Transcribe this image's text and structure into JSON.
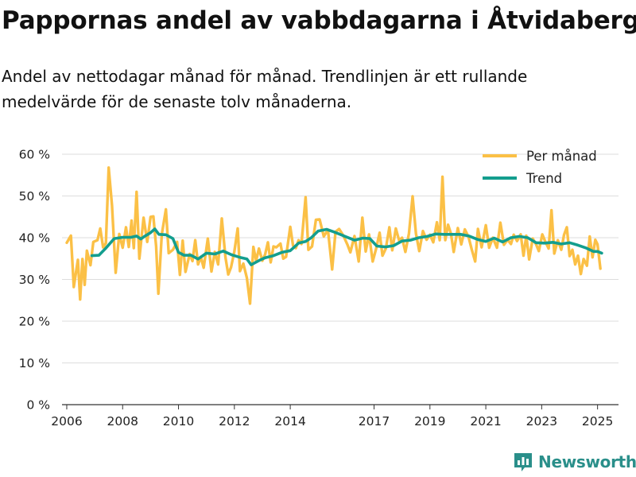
{
  "title": "Pappornas andel av vabbdagarna i Åtvidaberg",
  "subtitle": "Andel av nettodagar månad för månad. Trendlinjen är ett rullande medelvärde för de senaste tolv månaderna.",
  "brand": "Newsworthy",
  "colors": {
    "monthly": "#fbc046",
    "trend": "#139e8e",
    "brand": "#2a8f8a",
    "grid": "#dddddd"
  },
  "chart_data": {
    "type": "line",
    "title": "Pappornas andel av vabbdagarna i Åtvidaberg",
    "xlabel": "",
    "ylabel": "",
    "ylim": [
      0,
      60
    ],
    "xlim": [
      2005.83,
      2025.75
    ],
    "y_ticks": [
      0,
      10,
      20,
      30,
      40,
      50,
      60
    ],
    "y_tick_labels": [
      "0 %",
      "10 %",
      "20 %",
      "30 %",
      "40 %",
      "50 %",
      "60 %"
    ],
    "x_ticks": [
      2006,
      2008,
      2010,
      2012,
      2014,
      2017,
      2019,
      2021,
      2023,
      2025
    ],
    "x_tick_labels": [
      "2006",
      "2008",
      "2010",
      "2012",
      "2014",
      "2017",
      "2019",
      "2021",
      "2023",
      "2025"
    ],
    "legend": {
      "position": "top-right",
      "entries": [
        "Per månad",
        "Trend"
      ]
    },
    "series": [
      {
        "name": "Per månad",
        "points": [
          [
            2006.0,
            38.8
          ],
          [
            2006.15,
            40.5
          ],
          [
            2006.25,
            28.2
          ],
          [
            2006.4,
            34.7
          ],
          [
            2006.48,
            25.2
          ],
          [
            2006.56,
            34.9
          ],
          [
            2006.64,
            28.7
          ],
          [
            2006.72,
            36.9
          ],
          [
            2006.85,
            33.4
          ],
          [
            2006.95,
            39.0
          ],
          [
            2007.1,
            39.4
          ],
          [
            2007.2,
            42.2
          ],
          [
            2007.3,
            37.7
          ],
          [
            2007.4,
            38.7
          ],
          [
            2007.5,
            56.8
          ],
          [
            2007.62,
            47.7
          ],
          [
            2007.75,
            31.6
          ],
          [
            2007.88,
            40.9
          ],
          [
            2008.0,
            37.6
          ],
          [
            2008.12,
            42.5
          ],
          [
            2008.22,
            37.8
          ],
          [
            2008.32,
            44.1
          ],
          [
            2008.4,
            37.5
          ],
          [
            2008.5,
            51.0
          ],
          [
            2008.6,
            35.0
          ],
          [
            2008.75,
            44.8
          ],
          [
            2008.88,
            39.0
          ],
          [
            2009.0,
            45.0
          ],
          [
            2009.1,
            45.1
          ],
          [
            2009.2,
            37.9
          ],
          [
            2009.28,
            26.6
          ],
          [
            2009.4,
            40.8
          ],
          [
            2009.55,
            46.8
          ],
          [
            2009.65,
            36.3
          ],
          [
            2009.8,
            37.1
          ],
          [
            2009.95,
            39.0
          ],
          [
            2010.05,
            31.1
          ],
          [
            2010.15,
            39.3
          ],
          [
            2010.25,
            31.8
          ],
          [
            2010.4,
            36.1
          ],
          [
            2010.5,
            34.4
          ],
          [
            2010.6,
            39.4
          ],
          [
            2010.7,
            33.6
          ],
          [
            2010.8,
            35.4
          ],
          [
            2010.9,
            32.8
          ],
          [
            2011.05,
            39.8
          ],
          [
            2011.18,
            31.9
          ],
          [
            2011.3,
            36.6
          ],
          [
            2011.42,
            33.6
          ],
          [
            2011.55,
            44.6
          ],
          [
            2011.68,
            35.3
          ],
          [
            2011.78,
            31.2
          ],
          [
            2011.88,
            32.9
          ],
          [
            2012.0,
            36.7
          ],
          [
            2012.12,
            42.2
          ],
          [
            2012.2,
            32.0
          ],
          [
            2012.32,
            33.8
          ],
          [
            2012.45,
            30.3
          ],
          [
            2012.56,
            24.2
          ],
          [
            2012.68,
            37.8
          ],
          [
            2012.78,
            34.5
          ],
          [
            2012.88,
            37.4
          ],
          [
            2013.0,
            34.5
          ],
          [
            2013.1,
            36.0
          ],
          [
            2013.2,
            38.9
          ],
          [
            2013.3,
            34.1
          ],
          [
            2013.4,
            37.9
          ],
          [
            2013.5,
            37.7
          ],
          [
            2013.65,
            38.6
          ],
          [
            2013.75,
            35.0
          ],
          [
            2013.85,
            35.4
          ],
          [
            2014.0,
            42.6
          ],
          [
            2014.1,
            38.1
          ],
          [
            2014.2,
            37.5
          ],
          [
            2014.3,
            39.4
          ],
          [
            2014.4,
            38.5
          ],
          [
            2014.55,
            49.7
          ],
          [
            2014.65,
            37.1
          ],
          [
            2014.78,
            37.9
          ],
          [
            2014.92,
            44.3
          ],
          [
            2015.05,
            44.4
          ],
          [
            2015.2,
            40.3
          ],
          [
            2015.35,
            41.9
          ],
          [
            2015.5,
            32.4
          ],
          [
            2015.62,
            41.4
          ],
          [
            2015.75,
            42.1
          ],
          [
            2015.9,
            40.5
          ],
          [
            2016.05,
            38.3
          ],
          [
            2016.15,
            36.5
          ],
          [
            2016.3,
            40.4
          ],
          [
            2016.45,
            34.3
          ],
          [
            2016.58,
            44.8
          ],
          [
            2016.7,
            36.7
          ],
          [
            2016.82,
            40.8
          ],
          [
            2016.95,
            34.3
          ],
          [
            2017.08,
            37.5
          ],
          [
            2017.2,
            41.2
          ],
          [
            2017.3,
            35.7
          ],
          [
            2017.42,
            37.4
          ],
          [
            2017.55,
            42.5
          ],
          [
            2017.65,
            37.0
          ],
          [
            2017.78,
            42.2
          ],
          [
            2017.9,
            39.3
          ],
          [
            2018.0,
            40.0
          ],
          [
            2018.12,
            36.6
          ],
          [
            2018.25,
            41.0
          ],
          [
            2018.38,
            49.9
          ],
          [
            2018.5,
            41.0
          ],
          [
            2018.62,
            36.8
          ],
          [
            2018.75,
            41.6
          ],
          [
            2018.88,
            39.5
          ],
          [
            2019.0,
            40.7
          ],
          [
            2019.12,
            38.9
          ],
          [
            2019.25,
            43.7
          ],
          [
            2019.35,
            39.4
          ],
          [
            2019.45,
            54.6
          ],
          [
            2019.55,
            39.4
          ],
          [
            2019.65,
            43.1
          ],
          [
            2019.75,
            41.0
          ],
          [
            2019.85,
            36.6
          ],
          [
            2020.0,
            42.3
          ],
          [
            2020.12,
            38.4
          ],
          [
            2020.25,
            42.0
          ],
          [
            2020.38,
            40.2
          ],
          [
            2020.5,
            37.1
          ],
          [
            2020.62,
            34.3
          ],
          [
            2020.72,
            42.1
          ],
          [
            2020.85,
            37.7
          ],
          [
            2021.0,
            43.0
          ],
          [
            2021.12,
            37.6
          ],
          [
            2021.25,
            40.0
          ],
          [
            2021.4,
            37.6
          ],
          [
            2021.52,
            43.6
          ],
          [
            2021.65,
            38.3
          ],
          [
            2021.78,
            39.5
          ],
          [
            2021.9,
            38.5
          ],
          [
            2022.0,
            40.7
          ],
          [
            2022.12,
            39.2
          ],
          [
            2022.25,
            40.8
          ],
          [
            2022.35,
            35.7
          ],
          [
            2022.45,
            40.5
          ],
          [
            2022.55,
            34.8
          ],
          [
            2022.68,
            39.8
          ],
          [
            2022.8,
            38.4
          ],
          [
            2022.9,
            36.8
          ],
          [
            2023.02,
            40.8
          ],
          [
            2023.12,
            39.2
          ],
          [
            2023.25,
            37.4
          ],
          [
            2023.35,
            46.6
          ],
          [
            2023.45,
            36.2
          ],
          [
            2023.58,
            39.4
          ],
          [
            2023.7,
            37.1
          ],
          [
            2023.8,
            40.7
          ],
          [
            2023.9,
            42.5
          ],
          [
            2024.0,
            35.6
          ],
          [
            2024.1,
            37.1
          ],
          [
            2024.2,
            33.6
          ],
          [
            2024.3,
            35.7
          ],
          [
            2024.4,
            31.3
          ],
          [
            2024.5,
            34.9
          ],
          [
            2024.62,
            33.3
          ],
          [
            2024.72,
            40.3
          ],
          [
            2024.82,
            35.3
          ],
          [
            2024.92,
            39.5
          ],
          [
            2025.0,
            38.4
          ],
          [
            2025.1,
            32.6
          ]
        ]
      },
      {
        "name": "Trend",
        "points": [
          [
            2006.9,
            35.7
          ],
          [
            2007.15,
            35.8
          ],
          [
            2007.4,
            37.5
          ],
          [
            2007.7,
            39.8
          ],
          [
            2008.0,
            40.1
          ],
          [
            2008.3,
            40.1
          ],
          [
            2008.5,
            40.4
          ],
          [
            2008.65,
            39.7
          ],
          [
            2008.8,
            40.4
          ],
          [
            2009.0,
            41.2
          ],
          [
            2009.15,
            42.1
          ],
          [
            2009.3,
            40.8
          ],
          [
            2009.55,
            40.7
          ],
          [
            2009.8,
            39.8
          ],
          [
            2010.0,
            36.5
          ],
          [
            2010.2,
            35.8
          ],
          [
            2010.45,
            35.8
          ],
          [
            2010.7,
            34.9
          ],
          [
            2011.0,
            36.3
          ],
          [
            2011.3,
            36.1
          ],
          [
            2011.6,
            36.8
          ],
          [
            2011.9,
            35.9
          ],
          [
            2012.2,
            35.3
          ],
          [
            2012.45,
            34.9
          ],
          [
            2012.6,
            33.5
          ],
          [
            2012.9,
            34.6
          ],
          [
            2013.1,
            35.2
          ],
          [
            2013.4,
            35.7
          ],
          [
            2013.7,
            36.5
          ],
          [
            2014.0,
            36.9
          ],
          [
            2014.3,
            38.7
          ],
          [
            2014.55,
            39.1
          ],
          [
            2014.75,
            40.0
          ],
          [
            2015.0,
            41.6
          ],
          [
            2015.3,
            42.0
          ],
          [
            2015.55,
            41.4
          ],
          [
            2015.75,
            40.9
          ],
          [
            2016.0,
            40.2
          ],
          [
            2016.3,
            39.4
          ],
          [
            2016.6,
            39.9
          ],
          [
            2016.85,
            39.8
          ],
          [
            2017.1,
            38.0
          ],
          [
            2017.4,
            37.8
          ],
          [
            2017.7,
            38.1
          ],
          [
            2018.0,
            39.2
          ],
          [
            2018.3,
            39.4
          ],
          [
            2018.6,
            40.0
          ],
          [
            2018.9,
            40.3
          ],
          [
            2019.2,
            40.9
          ],
          [
            2019.5,
            40.8
          ],
          [
            2019.8,
            40.8
          ],
          [
            2020.1,
            40.8
          ],
          [
            2020.4,
            40.4
          ],
          [
            2020.7,
            39.6
          ],
          [
            2021.0,
            39.1
          ],
          [
            2021.3,
            39.9
          ],
          [
            2021.6,
            39.0
          ],
          [
            2021.9,
            40.0
          ],
          [
            2022.2,
            40.3
          ],
          [
            2022.5,
            40.0
          ],
          [
            2022.8,
            38.8
          ],
          [
            2023.1,
            38.7
          ],
          [
            2023.4,
            38.9
          ],
          [
            2023.7,
            38.5
          ],
          [
            2024.0,
            38.8
          ],
          [
            2024.3,
            38.2
          ],
          [
            2024.6,
            37.5
          ],
          [
            2024.85,
            36.7
          ],
          [
            2025.0,
            36.7
          ],
          [
            2025.15,
            36.3
          ]
        ]
      }
    ]
  }
}
